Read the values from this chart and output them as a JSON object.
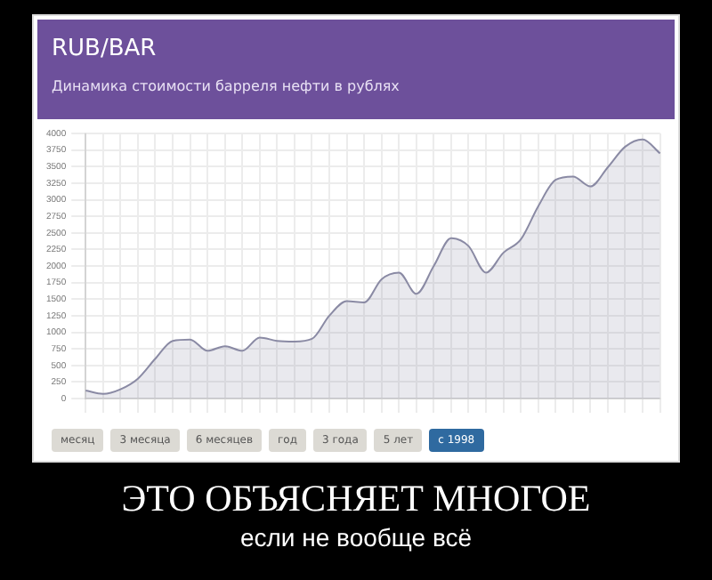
{
  "chart_data": {
    "type": "area",
    "title": "RUB/BAR",
    "subtitle": "Динамика стоимости барреля нефти в рублях",
    "categories": [
      null,
      null,
      null,
      null,
      null,
      null,
      null,
      null,
      null,
      null,
      null,
      null,
      null,
      null,
      null,
      null,
      null,
      null,
      null,
      null,
      null,
      null,
      null,
      null,
      null,
      null,
      null,
      null,
      null,
      null,
      null,
      null,
      null,
      null
    ],
    "values": [
      120,
      70,
      140,
      300,
      600,
      870,
      890,
      720,
      790,
      720,
      920,
      870,
      860,
      900,
      1250,
      1470,
      1450,
      1800,
      1900,
      1580,
      2000,
      2420,
      2300,
      1900,
      2200,
      2400,
      2900,
      3300,
      3350,
      3200,
      3490,
      3800,
      3910,
      3700
    ],
    "color": "#8a8aa4",
    "ylim": [
      0,
      4000
    ],
    "yticks": [
      0,
      250,
      500,
      750,
      1000,
      1250,
      1500,
      1750,
      2000,
      2250,
      2500,
      2750,
      3000,
      3250,
      3500,
      3750,
      4000
    ],
    "grid": true,
    "legend": false,
    "marker": "none",
    "annotations": [
      "месяц",
      "3 месяца",
      "6 месяцев",
      "год",
      "3 года",
      "5 лет",
      "с 1998",
      "ЭТО ОБЪЯСНЯЕТ МНОГОЕ",
      "если не вообще всё"
    ]
  }
}
